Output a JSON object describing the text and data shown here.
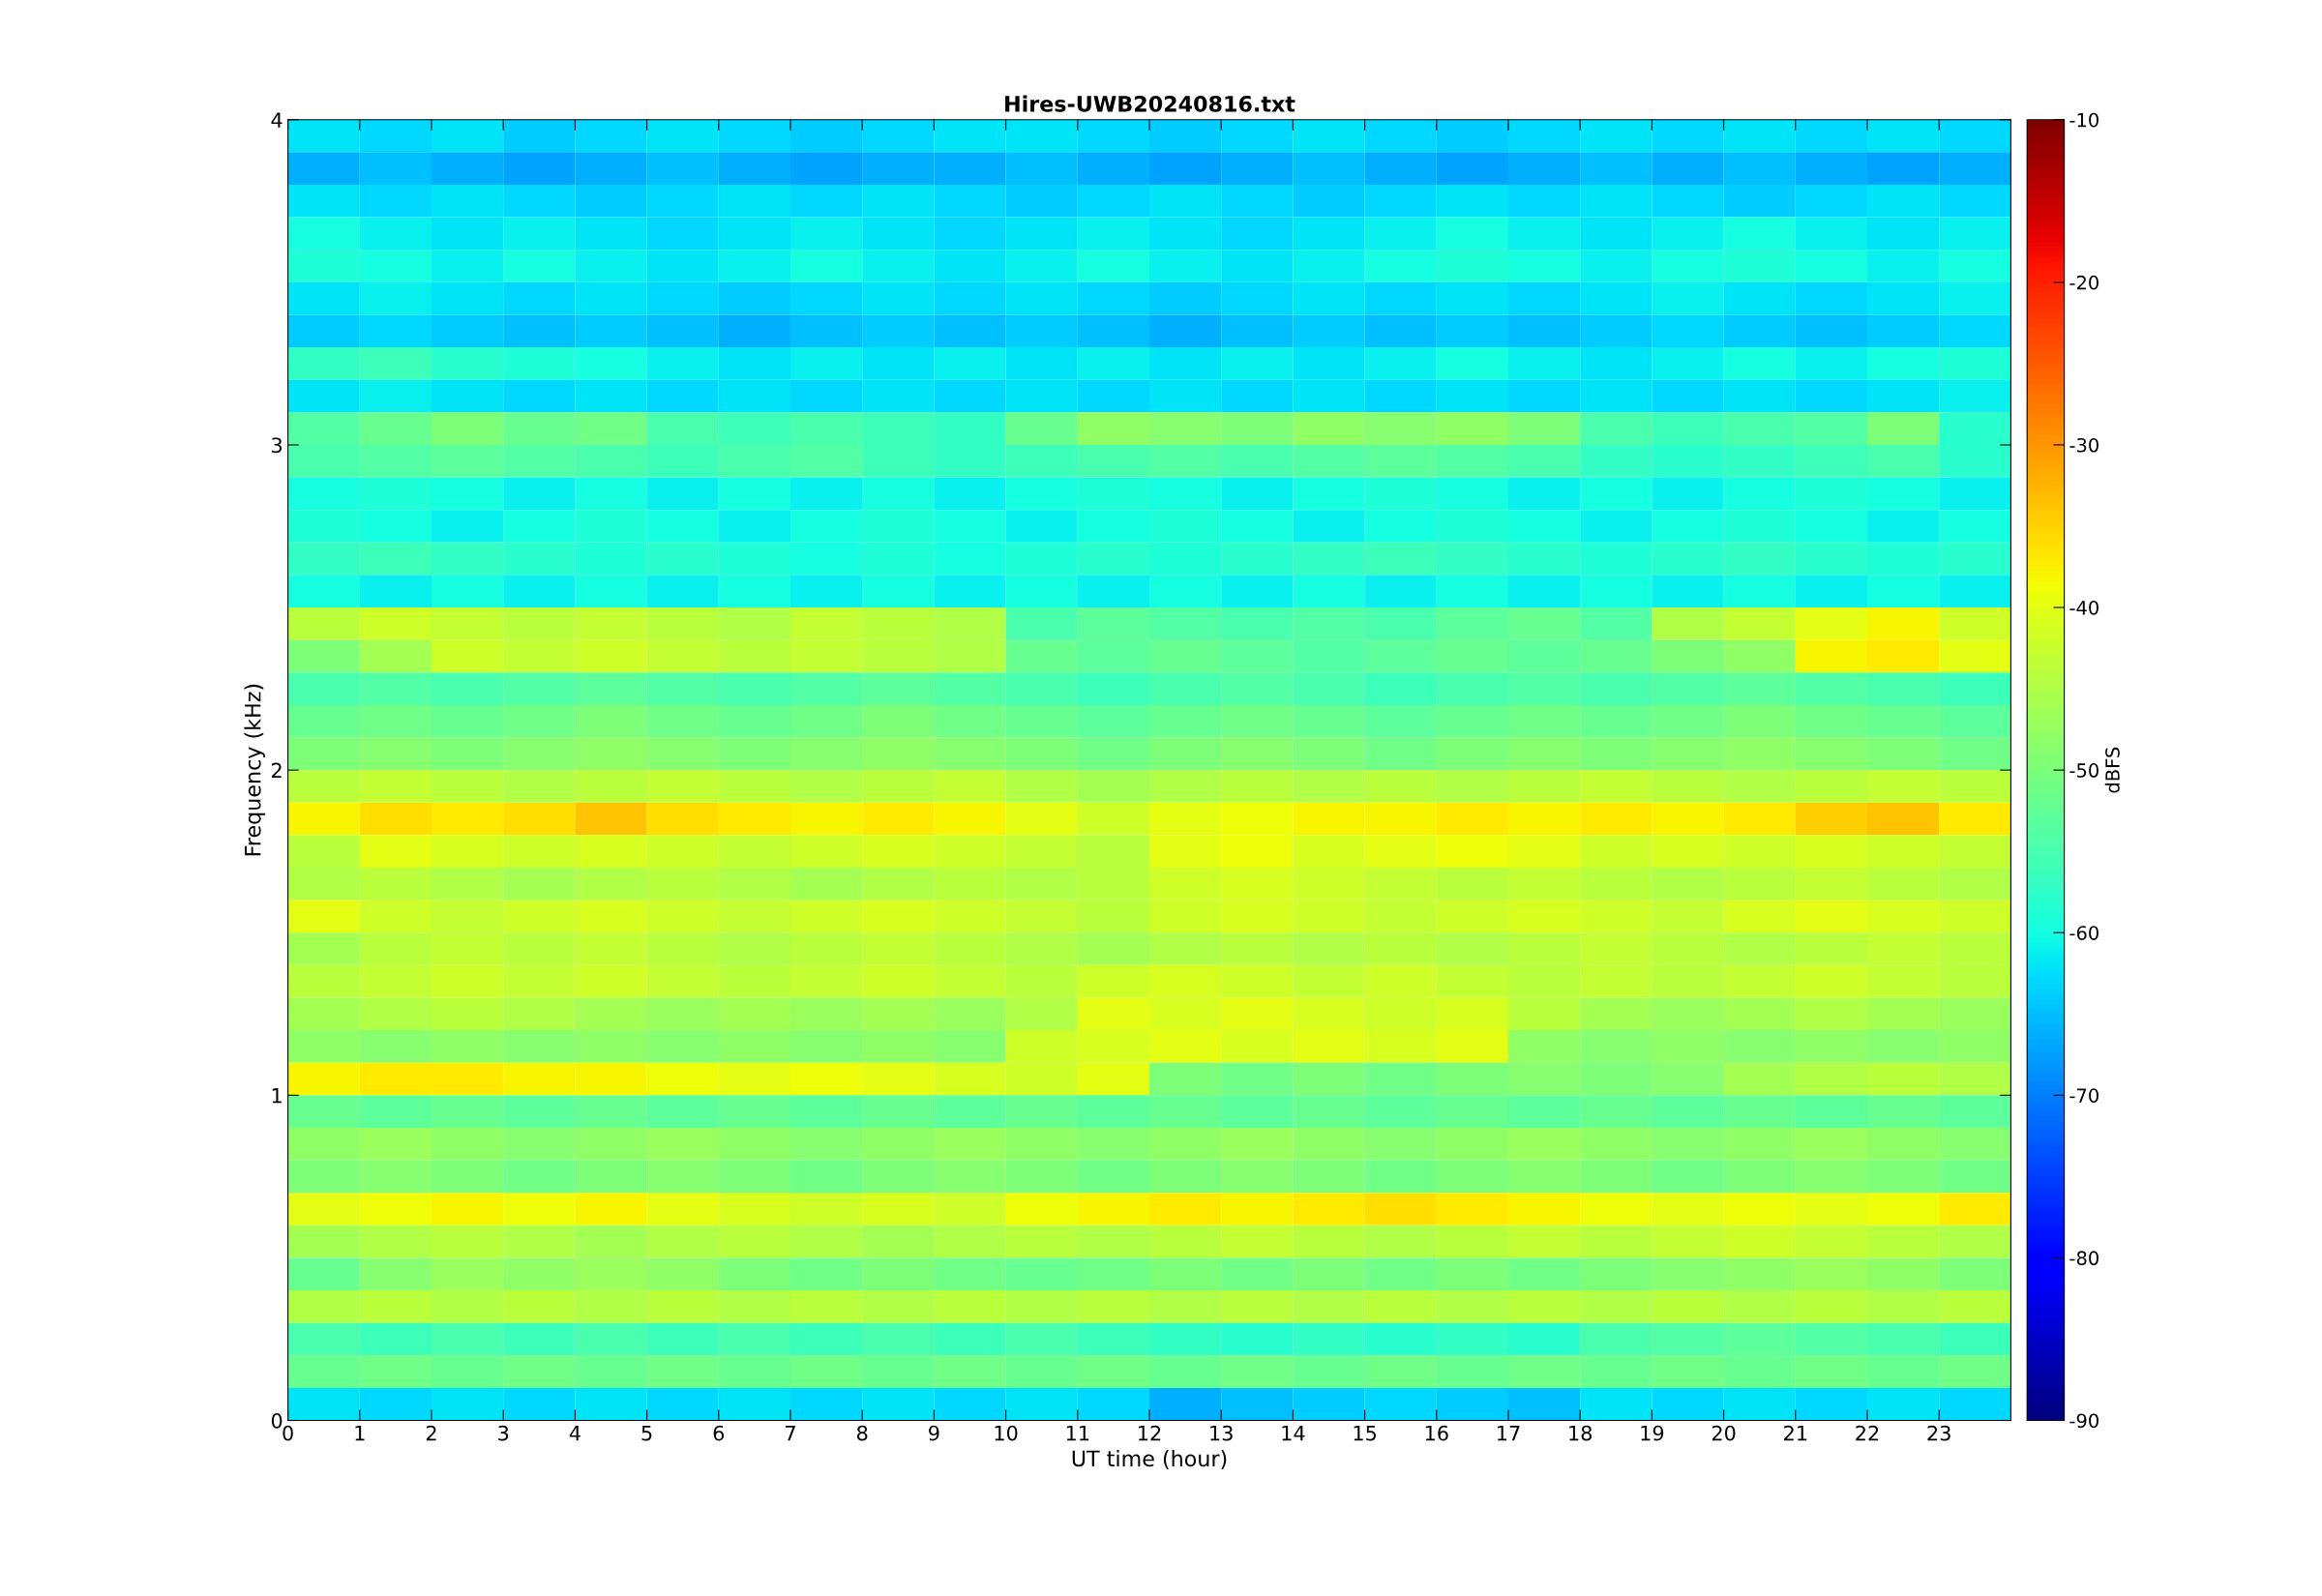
{
  "chart_data": {
    "type": "heatmap",
    "title": "Hires-UWB20240816.txt",
    "xlabel": "UT time (hour)",
    "ylabel": "Frequency (kHz)",
    "clabel": "dBFS",
    "x": [
      0.5,
      1.5,
      2.5,
      3.5,
      4.5,
      5.5,
      6.5,
      7.5,
      8.5,
      9.5,
      10.5,
      11.5,
      12.5,
      13.5,
      14.5,
      15.5,
      16.5,
      17.5,
      18.5,
      19.5,
      20.5,
      21.5,
      22.5,
      23.5
    ],
    "xlim": [
      0,
      24
    ],
    "xticks": [
      0,
      1,
      2,
      3,
      4,
      5,
      6,
      7,
      8,
      9,
      10,
      11,
      12,
      13,
      14,
      15,
      16,
      17,
      18,
      19,
      20,
      21,
      22,
      23
    ],
    "ylim": [
      0,
      4
    ],
    "yticks": [
      0,
      1,
      2,
      3,
      4
    ],
    "clim": [
      -90,
      -10
    ],
    "cticks": [
      -90,
      -80,
      -70,
      -60,
      -50,
      -40,
      -30,
      -20,
      -10
    ],
    "cells": [
      [
        -62,
        -63,
        -62,
        -64,
        -63,
        -62,
        -63,
        -64,
        -63,
        -62,
        -62,
        -63,
        -64,
        -63,
        -62,
        -63,
        -64,
        -63,
        -62,
        -63,
        -62,
        -63,
        -62,
        -63
      ],
      [
        -66,
        -65,
        -66,
        -67,
        -66,
        -65,
        -66,
        -67,
        -66,
        -66,
        -65,
        -66,
        -67,
        -66,
        -65,
        -66,
        -67,
        -66,
        -65,
        -66,
        -65,
        -66,
        -67,
        -66
      ],
      [
        -62,
        -63,
        -62,
        -63,
        -64,
        -63,
        -62,
        -63,
        -62,
        -63,
        -64,
        -63,
        -62,
        -63,
        -64,
        -63,
        -62,
        -63,
        -62,
        -63,
        -64,
        -63,
        -62,
        -63
      ],
      [
        -60,
        -61,
        -62,
        -61,
        -62,
        -63,
        -62,
        -61,
        -62,
        -63,
        -62,
        -61,
        -62,
        -63,
        -62,
        -61,
        -60,
        -61,
        -62,
        -61,
        -60,
        -61,
        -62,
        -61
      ],
      [
        -59,
        -60,
        -61,
        -60,
        -61,
        -62,
        -61,
        -60,
        -61,
        -62,
        -61,
        -60,
        -61,
        -62,
        -61,
        -60,
        -59,
        -60,
        -61,
        -60,
        -59,
        -60,
        -61,
        -60
      ],
      [
        -62,
        -61,
        -62,
        -63,
        -62,
        -63,
        -64,
        -63,
        -62,
        -63,
        -62,
        -63,
        -64,
        -63,
        -62,
        -63,
        -62,
        -63,
        -62,
        -61,
        -62,
        -63,
        -62,
        -61
      ],
      [
        -64,
        -63,
        -64,
        -65,
        -64,
        -65,
        -66,
        -65,
        -64,
        -65,
        -64,
        -65,
        -66,
        -65,
        -64,
        -65,
        -64,
        -65,
        -64,
        -63,
        -64,
        -65,
        -64,
        -63
      ],
      [
        -57,
        -56,
        -58,
        -59,
        -60,
        -61,
        -62,
        -61,
        -62,
        -61,
        -62,
        -61,
        -62,
        -61,
        -62,
        -61,
        -60,
        -61,
        -62,
        -61,
        -60,
        -61,
        -60,
        -59
      ],
      [
        -62,
        -61,
        -62,
        -63,
        -62,
        -63,
        -62,
        -63,
        -62,
        -63,
        -62,
        -63,
        -62,
        -63,
        -62,
        -63,
        -62,
        -63,
        -62,
        -63,
        -62,
        -63,
        -62,
        -61
      ],
      [
        -54,
        -52,
        -50,
        -52,
        -51,
        -55,
        -56,
        -55,
        -56,
        -57,
        -52,
        -48,
        -49,
        -50,
        -48,
        -49,
        -48,
        -50,
        -55,
        -56,
        -55,
        -54,
        -50,
        -58
      ],
      [
        -55,
        -54,
        -53,
        -54,
        -55,
        -56,
        -55,
        -54,
        -56,
        -57,
        -56,
        -55,
        -54,
        -55,
        -54,
        -53,
        -54,
        -55,
        -57,
        -58,
        -57,
        -56,
        -55,
        -58
      ],
      [
        -60,
        -59,
        -60,
        -61,
        -60,
        -61,
        -60,
        -61,
        -60,
        -61,
        -60,
        -59,
        -60,
        -61,
        -60,
        -59,
        -60,
        -61,
        -60,
        -61,
        -60,
        -59,
        -60,
        -61
      ],
      [
        -59,
        -60,
        -61,
        -60,
        -59,
        -60,
        -61,
        -60,
        -59,
        -60,
        -61,
        -60,
        -59,
        -60,
        -61,
        -60,
        -59,
        -60,
        -61,
        -60,
        -59,
        -60,
        -61,
        -60
      ],
      [
        -57,
        -56,
        -57,
        -58,
        -59,
        -58,
        -59,
        -60,
        -59,
        -60,
        -59,
        -58,
        -59,
        -58,
        -57,
        -56,
        -57,
        -58,
        -59,
        -58,
        -57,
        -58,
        -59,
        -58
      ],
      [
        -60,
        -61,
        -60,
        -61,
        -60,
        -61,
        -60,
        -61,
        -60,
        -61,
        -60,
        -61,
        -60,
        -61,
        -60,
        -61,
        -60,
        -61,
        -60,
        -61,
        -60,
        -61,
        -60,
        -61
      ],
      [
        -44,
        -42,
        -43,
        -44,
        -43,
        -44,
        -45,
        -43,
        -44,
        -45,
        -55,
        -53,
        -54,
        -55,
        -54,
        -55,
        -53,
        -52,
        -54,
        -45,
        -43,
        -40,
        -38,
        -42
      ],
      [
        -50,
        -46,
        -42,
        -43,
        -42,
        -43,
        -44,
        -43,
        -44,
        -45,
        -52,
        -53,
        -52,
        -53,
        -54,
        -53,
        -52,
        -53,
        -52,
        -50,
        -48,
        -38,
        -37,
        -40
      ],
      [
        -55,
        -54,
        -55,
        -54,
        -53,
        -54,
        -55,
        -54,
        -53,
        -54,
        -55,
        -56,
        -55,
        -54,
        -55,
        -56,
        -55,
        -54,
        -55,
        -54,
        -53,
        -54,
        -55,
        -56
      ],
      [
        -52,
        -51,
        -52,
        -51,
        -50,
        -51,
        -52,
        -51,
        -50,
        -51,
        -52,
        -53,
        -52,
        -51,
        -52,
        -53,
        -52,
        -51,
        -52,
        -51,
        -50,
        -51,
        -52,
        -53
      ],
      [
        -50,
        -49,
        -50,
        -49,
        -48,
        -49,
        -50,
        -49,
        -48,
        -49,
        -50,
        -51,
        -50,
        -49,
        -50,
        -51,
        -50,
        -49,
        -50,
        -49,
        -48,
        -49,
        -50,
        -51
      ],
      [
        -44,
        -43,
        -44,
        -45,
        -44,
        -43,
        -44,
        -45,
        -44,
        -43,
        -45,
        -46,
        -45,
        -44,
        -45,
        -44,
        -45,
        -44,
        -43,
        -44,
        -45,
        -44,
        -43,
        -44
      ],
      [
        -38,
        -36,
        -37,
        -36,
        -34,
        -36,
        -37,
        -38,
        -37,
        -38,
        -40,
        -42,
        -40,
        -39,
        -38,
        -38,
        -37,
        -38,
        -37,
        -38,
        -37,
        -35,
        -34,
        -37
      ],
      [
        -44,
        -40,
        -41,
        -42,
        -41,
        -42,
        -43,
        -42,
        -41,
        -42,
        -43,
        -44,
        -40,
        -39,
        -41,
        -40,
        -39,
        -40,
        -42,
        -41,
        -42,
        -41,
        -42,
        -43
      ],
      [
        -45,
        -44,
        -45,
        -46,
        -45,
        -44,
        -45,
        -46,
        -45,
        -44,
        -45,
        -44,
        -42,
        -41,
        -42,
        -43,
        -44,
        -43,
        -44,
        -45,
        -44,
        -43,
        -44,
        -45
      ],
      [
        -40,
        -42,
        -43,
        -42,
        -41,
        -42,
        -43,
        -42,
        -41,
        -42,
        -43,
        -44,
        -42,
        -41,
        -42,
        -43,
        -42,
        -41,
        -42,
        -43,
        -41,
        -40,
        -41,
        -42
      ],
      [
        -46,
        -44,
        -43,
        -44,
        -43,
        -44,
        -45,
        -44,
        -43,
        -44,
        -45,
        -46,
        -45,
        -44,
        -45,
        -44,
        -45,
        -44,
        -43,
        -44,
        -45,
        -44,
        -43,
        -44
      ],
      [
        -44,
        -43,
        -42,
        -43,
        -42,
        -43,
        -44,
        -43,
        -42,
        -43,
        -44,
        -42,
        -41,
        -42,
        -43,
        -42,
        -43,
        -44,
        -43,
        -44,
        -43,
        -42,
        -43,
        -44
      ],
      [
        -46,
        -45,
        -44,
        -45,
        -46,
        -47,
        -46,
        -47,
        -46,
        -47,
        -45,
        -40,
        -41,
        -40,
        -41,
        -42,
        -41,
        -44,
        -46,
        -47,
        -46,
        -45,
        -46,
        -47
      ],
      [
        -48,
        -49,
        -48,
        -49,
        -48,
        -49,
        -48,
        -49,
        -48,
        -49,
        -42,
        -41,
        -40,
        -41,
        -40,
        -41,
        -40,
        -48,
        -49,
        -48,
        -49,
        -48,
        -49,
        -48
      ],
      [
        -38,
        -37,
        -37,
        -38,
        -38,
        -39,
        -40,
        -39,
        -40,
        -41,
        -42,
        -40,
        -50,
        -51,
        -50,
        -51,
        -50,
        -49,
        -50,
        -49,
        -46,
        -45,
        -44,
        -45
      ],
      [
        -52,
        -53,
        -52,
        -53,
        -52,
        -53,
        -52,
        -53,
        -52,
        -53,
        -52,
        -53,
        -52,
        -53,
        -52,
        -53,
        -52,
        -53,
        -52,
        -53,
        -52,
        -53,
        -52,
        -53
      ],
      [
        -48,
        -47,
        -48,
        -49,
        -48,
        -47,
        -48,
        -49,
        -48,
        -47,
        -48,
        -49,
        -48,
        -47,
        -48,
        -49,
        -48,
        -47,
        -48,
        -49,
        -48,
        -47,
        -48,
        -49
      ],
      [
        -50,
        -49,
        -50,
        -51,
        -50,
        -49,
        -50,
        -51,
        -50,
        -49,
        -50,
        -51,
        -50,
        -49,
        -50,
        -51,
        -50,
        -49,
        -50,
        -51,
        -50,
        -49,
        -50,
        -51
      ],
      [
        -40,
        -39,
        -38,
        -39,
        -38,
        -40,
        -41,
        -42,
        -41,
        -42,
        -39,
        -38,
        -37,
        -38,
        -37,
        -36,
        -37,
        -38,
        -39,
        -40,
        -39,
        -40,
        -39,
        -37
      ],
      [
        -46,
        -45,
        -44,
        -45,
        -46,
        -45,
        -44,
        -45,
        -46,
        -45,
        -44,
        -45,
        -44,
        -43,
        -44,
        -45,
        -44,
        -43,
        -44,
        -43,
        -42,
        -43,
        -44,
        -45
      ],
      [
        -52,
        -49,
        -47,
        -48,
        -47,
        -48,
        -50,
        -51,
        -50,
        -51,
        -52,
        -51,
        -50,
        -51,
        -50,
        -51,
        -50,
        -51,
        -50,
        -49,
        -48,
        -47,
        -48,
        -50
      ],
      [
        -45,
        -44,
        -45,
        -44,
        -45,
        -44,
        -45,
        -44,
        -45,
        -44,
        -45,
        -44,
        -45,
        -44,
        -45,
        -44,
        -45,
        -44,
        -45,
        -44,
        -45,
        -44,
        -45,
        -44
      ],
      [
        -55,
        -56,
        -55,
        -56,
        -55,
        -56,
        -55,
        -56,
        -55,
        -56,
        -55,
        -56,
        -57,
        -58,
        -57,
        -58,
        -57,
        -58,
        -55,
        -54,
        -53,
        -54,
        -55,
        -56
      ],
      [
        -52,
        -51,
        -52,
        -51,
        -52,
        -51,
        -52,
        -51,
        -52,
        -51,
        -52,
        -51,
        -52,
        -51,
        -52,
        -51,
        -52,
        -51,
        -52,
        -51,
        -52,
        -51,
        -52,
        -51
      ],
      [
        -62,
        -63,
        -62,
        -63,
        -62,
        -63,
        -62,
        -63,
        -62,
        -63,
        -62,
        -63,
        -66,
        -65,
        -64,
        -63,
        -64,
        -65,
        -62,
        -63,
        -62,
        -63,
        -62,
        -63
      ]
    ]
  }
}
